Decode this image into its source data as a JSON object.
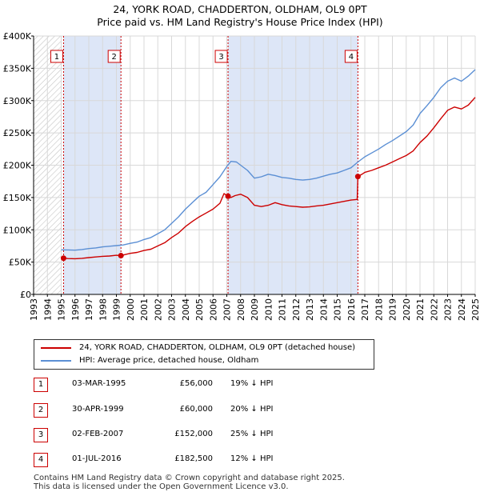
{
  "chart_data": {
    "type": "line",
    "title": "24, YORK ROAD, CHADDERTON, OLDHAM, OL9 0PT",
    "subtitle": "Price paid vs. HM Land Registry's House Price Index (HPI)",
    "xlim": [
      1993,
      2025
    ],
    "ylim": [
      0,
      400000
    ],
    "y_ticks": [
      0,
      50000,
      100000,
      150000,
      200000,
      250000,
      300000,
      350000,
      400000
    ],
    "y_tick_labels": [
      "£0",
      "£50K",
      "£100K",
      "£150K",
      "£200K",
      "£250K",
      "£300K",
      "£350K",
      "£400K"
    ],
    "x_ticks": [
      1993,
      1994,
      1995,
      1996,
      1997,
      1998,
      1999,
      2000,
      2001,
      2002,
      2003,
      2004,
      2005,
      2006,
      2007,
      2008,
      2009,
      2010,
      2011,
      2012,
      2013,
      2014,
      2015,
      2016,
      2017,
      2018,
      2019,
      2020,
      2021,
      2022,
      2023,
      2024,
      2025
    ],
    "x_tick_labels": [
      "1993",
      "1994",
      "1995",
      "1996",
      "1997",
      "1998",
      "1999",
      "2000",
      "2001",
      "2002",
      "2003",
      "2004",
      "2005",
      "2006",
      "2007",
      "2008",
      "2009",
      "2010",
      "2011",
      "2012",
      "2013",
      "2014",
      "2015",
      "2016",
      "2017",
      "2018",
      "2019",
      "2020",
      "2021",
      "2022",
      "2023",
      "2024",
      "2025"
    ],
    "grid": true,
    "series": [
      {
        "name": "24, YORK ROAD, CHADDERTON, OLDHAM, OL9 0PT (detached house)",
        "color": "#cc0000",
        "points": [
          [
            1995.17,
            56000
          ],
          [
            1995.5,
            55500
          ],
          [
            1996,
            55200
          ],
          [
            1996.5,
            55800
          ],
          [
            1997,
            57000
          ],
          [
            1997.5,
            58000
          ],
          [
            1998,
            59000
          ],
          [
            1998.5,
            59500
          ],
          [
            1999.0,
            60500
          ],
          [
            1999.33,
            60000
          ],
          [
            1999.6,
            61500
          ],
          [
            2000,
            63500
          ],
          [
            2000.5,
            65000
          ],
          [
            2001,
            68000
          ],
          [
            2001.5,
            70000
          ],
          [
            2002,
            75000
          ],
          [
            2002.5,
            80000
          ],
          [
            2003,
            88000
          ],
          [
            2003.5,
            95000
          ],
          [
            2004,
            105000
          ],
          [
            2004.5,
            113000
          ],
          [
            2005,
            120000
          ],
          [
            2005.5,
            126000
          ],
          [
            2006,
            132000
          ],
          [
            2006.5,
            141000
          ],
          [
            2006.8,
            156000
          ],
          [
            2007.09,
            152000
          ],
          [
            2007.3,
            150000
          ],
          [
            2007.6,
            153000
          ],
          [
            2008,
            155000
          ],
          [
            2008.5,
            150000
          ],
          [
            2009,
            138000
          ],
          [
            2009.5,
            136000
          ],
          [
            2010,
            138000
          ],
          [
            2010.5,
            142000
          ],
          [
            2011,
            139000
          ],
          [
            2011.5,
            137000
          ],
          [
            2012,
            136000
          ],
          [
            2012.5,
            135000
          ],
          [
            2013,
            135500
          ],
          [
            2013.5,
            137000
          ],
          [
            2014,
            138000
          ],
          [
            2014.5,
            140000
          ],
          [
            2015,
            142000
          ],
          [
            2015.5,
            144000
          ],
          [
            2016,
            146000
          ],
          [
            2016.45,
            147000
          ],
          [
            2016.5,
            182500
          ],
          [
            2016.8,
            186000
          ],
          [
            2017,
            189000
          ],
          [
            2017.5,
            192000
          ],
          [
            2018,
            196000
          ],
          [
            2018.5,
            200000
          ],
          [
            2019,
            205000
          ],
          [
            2019.5,
            210000
          ],
          [
            2020,
            215000
          ],
          [
            2020.5,
            222000
          ],
          [
            2021,
            235000
          ],
          [
            2021.5,
            245000
          ],
          [
            2022,
            258000
          ],
          [
            2022.5,
            272000
          ],
          [
            2023,
            285000
          ],
          [
            2023.5,
            290000
          ],
          [
            2024,
            287000
          ],
          [
            2024.5,
            293000
          ],
          [
            2025,
            305000
          ]
        ]
      },
      {
        "name": "HPI: Average price, detached house, Oldham",
        "color": "#5b8fd4",
        "points": [
          [
            1995,
            69000
          ],
          [
            1995.5,
            68800
          ],
          [
            1996,
            68500
          ],
          [
            1996.5,
            69500
          ],
          [
            1997,
            71000
          ],
          [
            1997.5,
            72000
          ],
          [
            1998,
            73500
          ],
          [
            1998.5,
            74500
          ],
          [
            1999,
            75500
          ],
          [
            1999.5,
            76500
          ],
          [
            2000,
            79000
          ],
          [
            2000.5,
            81000
          ],
          [
            2001,
            85000
          ],
          [
            2001.5,
            88000
          ],
          [
            2002,
            94000
          ],
          [
            2002.5,
            100000
          ],
          [
            2003,
            110000
          ],
          [
            2003.5,
            120000
          ],
          [
            2004,
            132000
          ],
          [
            2004.5,
            142000
          ],
          [
            2005,
            152000
          ],
          [
            2005.5,
            158000
          ],
          [
            2006,
            170000
          ],
          [
            2006.5,
            182000
          ],
          [
            2007,
            198000
          ],
          [
            2007.3,
            206000
          ],
          [
            2007.7,
            205000
          ],
          [
            2008,
            200000
          ],
          [
            2008.5,
            192000
          ],
          [
            2009,
            180000
          ],
          [
            2009.5,
            182000
          ],
          [
            2010,
            186000
          ],
          [
            2010.5,
            184000
          ],
          [
            2011,
            181000
          ],
          [
            2011.5,
            180000
          ],
          [
            2012,
            178000
          ],
          [
            2012.5,
            177000
          ],
          [
            2013,
            178000
          ],
          [
            2013.5,
            180000
          ],
          [
            2014,
            183000
          ],
          [
            2014.5,
            186000
          ],
          [
            2015,
            188000
          ],
          [
            2015.5,
            192000
          ],
          [
            2016,
            196000
          ],
          [
            2016.5,
            205000
          ],
          [
            2017,
            213000
          ],
          [
            2017.5,
            219000
          ],
          [
            2018,
            225000
          ],
          [
            2018.5,
            232000
          ],
          [
            2019,
            238000
          ],
          [
            2019.5,
            245000
          ],
          [
            2020,
            252000
          ],
          [
            2020.5,
            262000
          ],
          [
            2021,
            280000
          ],
          [
            2021.5,
            292000
          ],
          [
            2022,
            305000
          ],
          [
            2022.5,
            320000
          ],
          [
            2023,
            330000
          ],
          [
            2023.5,
            335000
          ],
          [
            2024,
            330000
          ],
          [
            2024.5,
            338000
          ],
          [
            2025,
            348000
          ]
        ]
      }
    ],
    "sales": [
      {
        "marker": "1",
        "x": 1995.17,
        "price_value": 56000,
        "date": "03-MAR-1995",
        "price": "£56,000",
        "hpi": "19% ↓ HPI"
      },
      {
        "marker": "2",
        "x": 1999.33,
        "price_value": 60000,
        "date": "30-APR-1999",
        "price": "£60,000",
        "hpi": "20% ↓ HPI"
      },
      {
        "marker": "3",
        "x": 2007.09,
        "price_value": 152000,
        "date": "02-FEB-2007",
        "price": "£152,000",
        "hpi": "25% ↓ HPI"
      },
      {
        "marker": "4",
        "x": 2016.5,
        "price_value": 182500,
        "date": "01-JUL-2016",
        "price": "£182,500",
        "hpi": "12% ↓ HPI"
      }
    ],
    "shaded_periods": [
      [
        1995.17,
        1999.33
      ],
      [
        2007.09,
        2016.5
      ]
    ],
    "hatched_before": 1995.0
  },
  "colors": {
    "property": "#cc0000",
    "hpi": "#5b8fd4",
    "shade": "#dde6f7",
    "grid": "#d8d8d8",
    "marker_border": "#cc0000"
  },
  "footer": {
    "line1": "Contains HM Land Registry data © Crown copyright and database right 2025.",
    "line2": "This data is licensed under the Open Government Licence v3.0."
  }
}
